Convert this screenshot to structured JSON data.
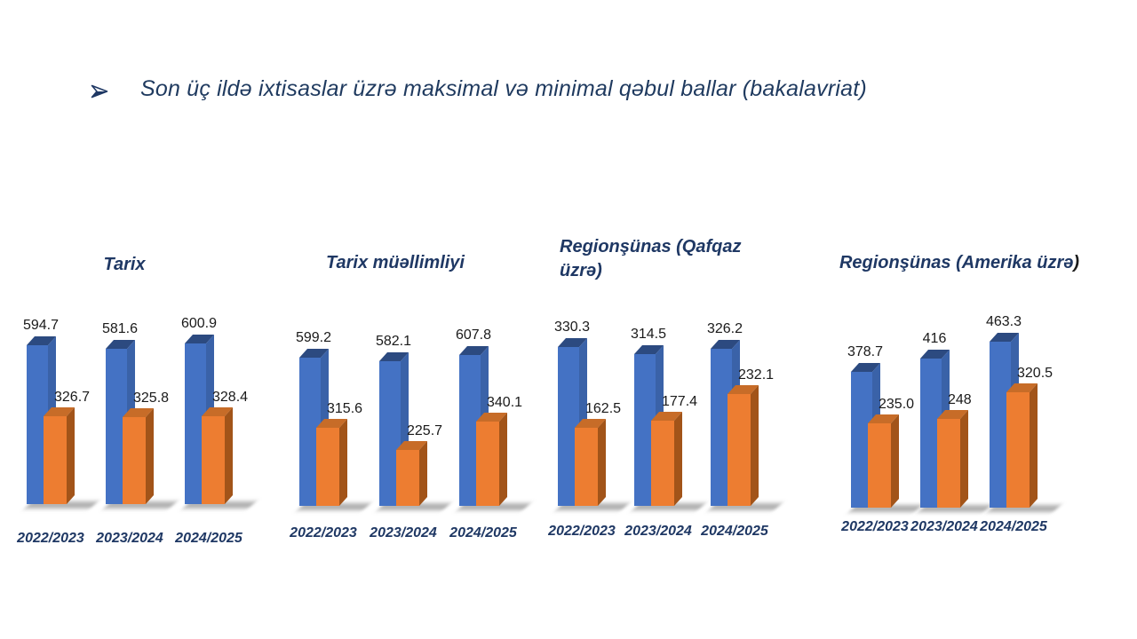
{
  "slide": {
    "title": "Son üç ildə ixtisaslar üzrə maksimal və minimal qəbul ballar (bakalavriat)",
    "bullet_icon": "arrowhead-right"
  },
  "colors": {
    "background": "#FFFFFF",
    "title_text": "#1F3A5F",
    "chart_title": "#1F3864",
    "axis_label": "#1F3864",
    "data_label": "#1A1A1A",
    "max_bar": "#4472C4",
    "max_bar_top": "#2C4A80",
    "max_bar_side": "#3A62A8",
    "min_bar": "#ED7D31",
    "min_bar_top": "#C76C28",
    "min_bar_side": "#A25419"
  },
  "chart_data": [
    {
      "type": "bar",
      "title": "Tarix",
      "title_suffix": "",
      "categories": [
        "2022/2023",
        "2023/2024",
        "2024/2025"
      ],
      "series": [
        {
          "name": "maksimal",
          "values": [
            594.7,
            581.6,
            600.9
          ],
          "labels": [
            "594.7",
            "581.6",
            "600.9"
          ]
        },
        {
          "name": "minimal",
          "values": [
            326.7,
            325.8,
            328.4
          ],
          "labels": [
            "326.7",
            "325.8",
            "328.4"
          ]
        }
      ],
      "xlabel": "",
      "ylabel": "",
      "ylim": [
        0,
        630
      ],
      "grid": false,
      "legend": "none"
    },
    {
      "type": "bar",
      "title": "Tarix müəllimliyi",
      "title_suffix": "",
      "categories": [
        "2022/2023",
        "2023/2024",
        "2024/2025"
      ],
      "series": [
        {
          "name": "maksimal",
          "values": [
            599.2,
            582.1,
            607.8
          ],
          "labels": [
            "599.2",
            "582.1",
            "607.8"
          ]
        },
        {
          "name": "minimal",
          "values": [
            315.6,
            225.7,
            340.1
          ],
          "labels": [
            "315.6",
            "225.7",
            "340.1"
          ]
        }
      ],
      "xlabel": "",
      "ylabel": "",
      "ylim": [
        0,
        680
      ],
      "grid": false,
      "legend": "none"
    },
    {
      "type": "bar",
      "title": "Regionşünas (Qafqaz üzrə)",
      "title_suffix": "",
      "categories": [
        "2022/2023",
        "2023/2024",
        "2024/2025"
      ],
      "series": [
        {
          "name": "maksimal",
          "values": [
            330.3,
            314.5,
            326.2
          ],
          "labels": [
            "330.3",
            "314.5",
            "326.2"
          ]
        },
        {
          "name": "minimal",
          "values": [
            162.5,
            177.4,
            232.1
          ],
          "labels": [
            "162.5",
            "177.4",
            "232.1"
          ]
        }
      ],
      "xlabel": "",
      "ylabel": "",
      "ylim": [
        0,
        350
      ],
      "grid": false,
      "legend": "none"
    },
    {
      "type": "bar",
      "title": "Regionşünas (Amerika üzrə",
      "title_suffix": ")",
      "categories": [
        "2022/2023",
        "2023/2024",
        "2024/2025"
      ],
      "series": [
        {
          "name": "maksimal",
          "values": [
            378.7,
            416,
            463.3
          ],
          "labels": [
            "378.7",
            "416",
            "463.3"
          ]
        },
        {
          "name": "minimal",
          "values": [
            235.0,
            248,
            320.5
          ],
          "labels": [
            "235.0",
            "248",
            "320.5"
          ]
        }
      ],
      "xlabel": "",
      "ylabel": "",
      "ylim": [
        0,
        470
      ],
      "grid": false,
      "legend": "none"
    }
  ]
}
